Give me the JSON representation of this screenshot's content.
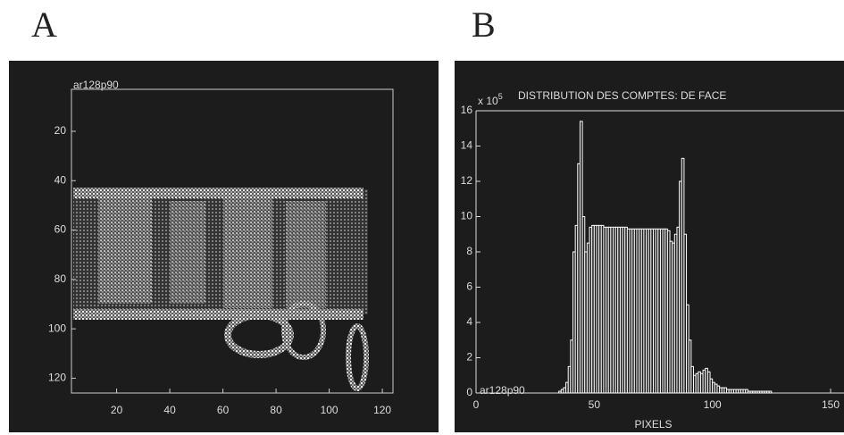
{
  "chart_data": [
    {
      "type": "image",
      "panel": "A",
      "label": "ar128p90",
      "xlim": [
        3,
        124
      ],
      "ylim": [
        3,
        126
      ],
      "xticks": [
        20,
        40,
        60,
        80,
        100,
        120
      ],
      "yticks": [
        20,
        40,
        60,
        80,
        100,
        120
      ]
    },
    {
      "type": "histogram",
      "panel": "B",
      "title": "DISTRIBUTION DES COMPTES: DE FACE",
      "y_multiplier": "x 10",
      "y_exponent": "5",
      "x_label": "PIXELS",
      "label": "ar128p90",
      "xlim": [
        0,
        150
      ],
      "ylim": [
        0,
        16
      ],
      "xticks": [
        0,
        50,
        100,
        150
      ],
      "yticks": [
        0,
        2,
        4,
        6,
        8,
        10,
        12,
        14,
        16
      ],
      "color": "#ffffff",
      "bins": [
        35,
        36,
        37,
        38,
        39,
        40,
        41,
        42,
        43,
        44,
        45,
        46,
        47,
        48,
        49,
        50,
        51,
        52,
        53,
        54,
        55,
        56,
        57,
        58,
        59,
        60,
        61,
        62,
        63,
        64,
        65,
        66,
        67,
        68,
        69,
        70,
        71,
        72,
        73,
        74,
        75,
        76,
        77,
        78,
        79,
        80,
        81,
        82,
        83,
        84,
        85,
        86,
        87,
        88,
        89,
        90,
        91,
        92,
        93,
        94,
        95,
        96,
        97,
        98,
        99,
        100,
        101,
        102,
        103,
        104,
        105,
        106,
        107,
        108,
        109,
        110,
        111,
        112,
        113,
        114,
        115,
        116,
        117,
        118,
        119,
        120,
        121,
        122,
        123,
        124,
        125
      ],
      "values": [
        0.1,
        0.2,
        0.3,
        0.6,
        1.5,
        3,
        8,
        9.5,
        13,
        15.4,
        10,
        8,
        8.5,
        9.4,
        9.5,
        9.5,
        9.5,
        9.5,
        9.5,
        9.4,
        9.4,
        9.4,
        9.4,
        9.4,
        9.4,
        9.4,
        9.4,
        9.4,
        9.4,
        9.3,
        9.3,
        9.3,
        9.3,
        9.3,
        9.3,
        9.3,
        9.3,
        9.3,
        9.3,
        9.3,
        9.3,
        9.3,
        9.3,
        9.3,
        9.3,
        9.3,
        9.2,
        8.6,
        8.5,
        9,
        9.4,
        12,
        13.3,
        9,
        5,
        3,
        1.5,
        1.0,
        1.1,
        1.2,
        1.1,
        1.3,
        1.4,
        1.2,
        0.8,
        0.6,
        0.5,
        0.4,
        0.3,
        0.3,
        0.3,
        0.2,
        0.2,
        0.2,
        0.2,
        0.2,
        0.2,
        0.2,
        0.2,
        0.2,
        0.1,
        0.1,
        0.1,
        0.1,
        0.1,
        0.1,
        0.1,
        0.1,
        0.1,
        0.1
      ]
    }
  ]
}
